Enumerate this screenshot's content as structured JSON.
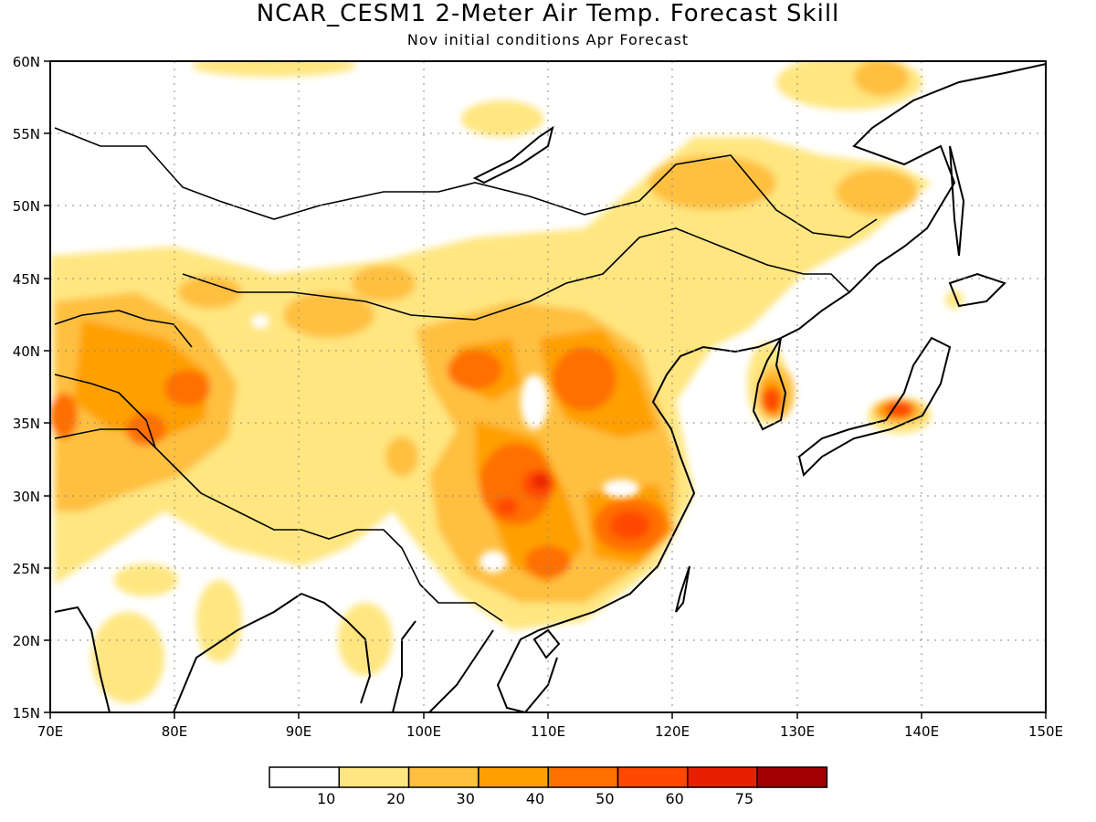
{
  "title": "NCAR_CESM1 2-Meter Air Temp. Forecast Skill",
  "subtitle": "Nov initial conditions  Apr Forecast",
  "map": {
    "lon_range": [
      70,
      150
    ],
    "lat_range": [
      15,
      60
    ],
    "lon_ticks": [
      "70E",
      "80E",
      "90E",
      "100E",
      "110E",
      "120E",
      "130E",
      "140E",
      "150E"
    ],
    "lat_ticks": [
      "15N",
      "20N",
      "25N",
      "30N",
      "35N",
      "40N",
      "45N",
      "50N",
      "55N",
      "60N"
    ],
    "gridlines": "dotted"
  },
  "colorbar": {
    "labels": [
      "10",
      "20",
      "30",
      "40",
      "50",
      "60",
      "75"
    ],
    "colors": [
      "#ffffff",
      "#ffe680",
      "#ffc040",
      "#ffa000",
      "#ff7000",
      "#ff4800",
      "#e82000",
      "#a00000"
    ]
  }
}
